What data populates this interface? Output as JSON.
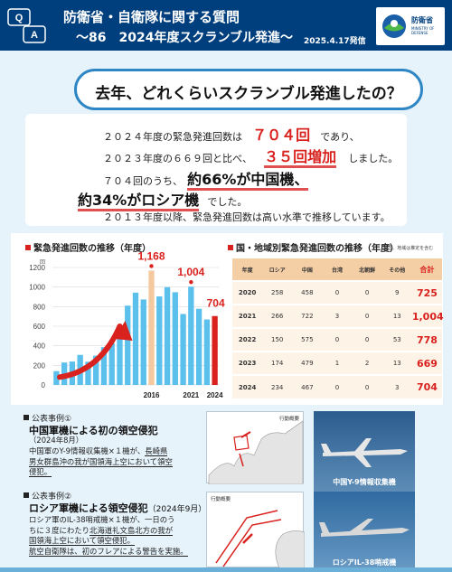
{
  "header": {
    "qa_icon_q": "Q",
    "qa_icon_a": "A",
    "title_line1": "防衛省・自衛隊に関する質問",
    "title_line2": "～86　2024年度スクランブル発進～",
    "date": "2025.4.17発信",
    "logo_jp": "防衛省",
    "logo_en": "MINISTRY OF DEFENSE"
  },
  "banner": {
    "question": "去年、どれくらいスクランブル発進したの？"
  },
  "summary": {
    "l1_a": "２０２４年度の緊急発進回数は",
    "l1_b": "７０４回",
    "l1_c": "であり、",
    "l2_a": "２０２３年度の６６９回と比べ、",
    "l2_b": "３５回増加",
    "l2_c": "しました。",
    "l3_a": "７０４回のうち、",
    "l3_b": "約66%が中国機、",
    "l4_a": "約34%がロシア機",
    "l4_b": "でした。",
    "l5": "２０１３年度以降、緊急発進回数は高い水準で推移しています。"
  },
  "chart_section": {
    "title": "緊急発進回数の推移（年度）",
    "unit": "回"
  },
  "chart_data": {
    "type": "bar",
    "categories": [
      "2004",
      "2005",
      "2006",
      "2007",
      "2008",
      "2009",
      "2010",
      "2011",
      "2012",
      "2013",
      "2014",
      "2015",
      "2016",
      "2017",
      "2018",
      "2019",
      "2020",
      "2021",
      "2022",
      "2023",
      "2024"
    ],
    "values": [
      141,
      229,
      239,
      307,
      237,
      299,
      386,
      425,
      567,
      810,
      943,
      873,
      1168,
      904,
      999,
      947,
      725,
      1004,
      778,
      669,
      704
    ],
    "ylim": [
      0,
      1200
    ],
    "yticks": [
      0,
      200,
      400,
      600,
      800,
      1000,
      1200
    ],
    "xtick_labels": [
      {
        "year": "2016",
        "label": "2016"
      },
      {
        "year": "2021",
        "label": "2021"
      },
      {
        "year": "2024",
        "label": "2024"
      }
    ],
    "annotations": [
      {
        "year": "2016",
        "text": "1,168"
      },
      {
        "year": "2021",
        "text": "1,004"
      },
      {
        "year": "2024",
        "text": "704"
      }
    ],
    "colors": {
      "bar": "#5bc0eb",
      "highlight_2016": "#f4c9a0",
      "highlight_2024": "#d9211d",
      "arrow": "#d9211d",
      "label": "#d9211d"
    }
  },
  "table_section": {
    "title": "国・地域別緊急発進回数の推移（年度）",
    "note": "※国、地域は推定を含む",
    "headers": [
      "年度",
      "ロシア",
      "中国",
      "台湾",
      "北朝鮮",
      "その他",
      "合計"
    ],
    "rows": [
      [
        "2020",
        "258",
        "458",
        "0",
        "0",
        "9",
        "725"
      ],
      [
        "2021",
        "266",
        "722",
        "3",
        "0",
        "13",
        "1,004"
      ],
      [
        "2022",
        "150",
        "575",
        "0",
        "0",
        "53",
        "778"
      ],
      [
        "2023",
        "174",
        "479",
        "1",
        "2",
        "13",
        "669"
      ],
      [
        "2024",
        "234",
        "467",
        "0",
        "0",
        "3",
        "704"
      ]
    ]
  },
  "case1": {
    "head": "公表事例①",
    "title": "中国軍機による初の領空侵犯",
    "date": "（2024年8月）",
    "body_1": "中国軍のY-9情報収集機×１機が、",
    "body_2": "長崎県",
    "body_3": "男女群島沖の我が国領海上空において領空",
    "body_4": "侵犯。",
    "map_tag": "行動概要",
    "photo_caption": "中国Y-9情報収集機"
  },
  "case2": {
    "head": "公表事例②",
    "title": "ロシア軍機による領空侵犯",
    "date": "（2024年9月）",
    "body_1": "ロシア軍のIL-38哨戒機×１機が、一日のう",
    "body_2": "ちに３度にわたり",
    "body_3": "北海道礼文島北方の我が",
    "body_4": "国領海上空において領空侵犯。",
    "body_5": "航空自衛隊は、初のフレアによる警告を実施。",
    "map_tag": "行動概要",
    "photo_caption": "ロシアIL-38哨戒機"
  }
}
